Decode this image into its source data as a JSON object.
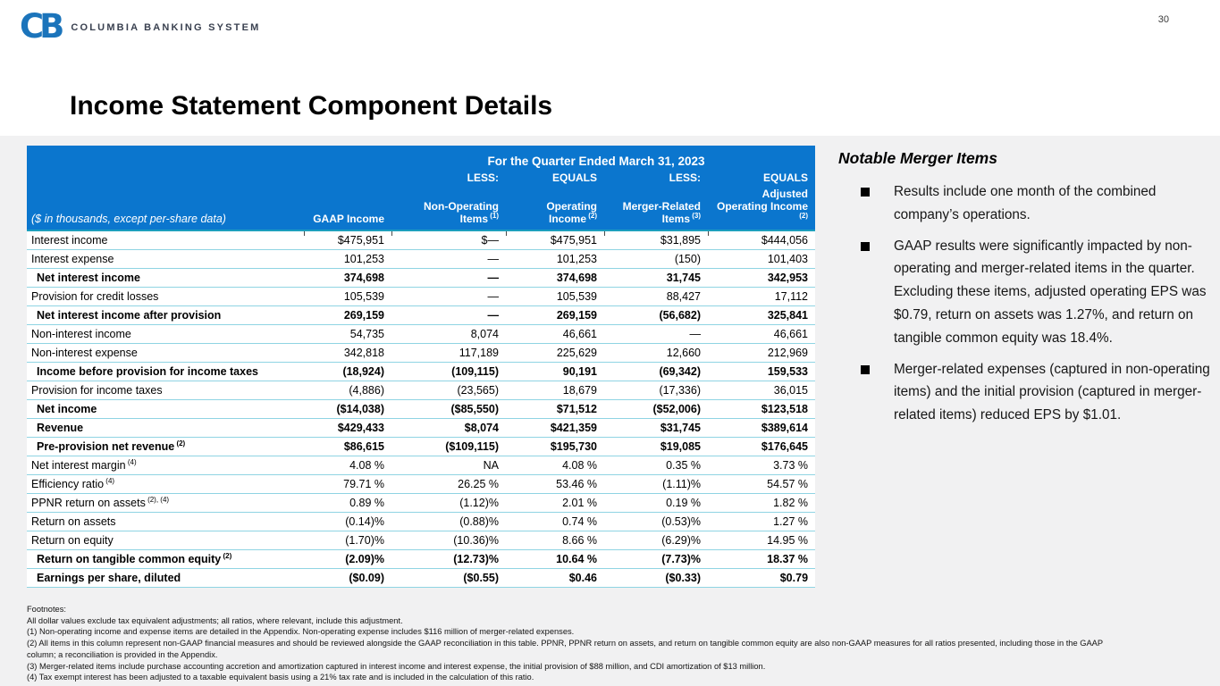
{
  "page_number": "30",
  "logo": {
    "monogram": "CB",
    "company_name": "COLUMBIA BANKING SYSTEM"
  },
  "title": "Income Statement Component Details",
  "table": {
    "period_header": "For the Quarter Ended March 31, 2023",
    "row_label_caption": "($ in thousands, except per-share data)",
    "operators": [
      "",
      "LESS:",
      "EQUALS",
      "LESS:",
      "EQUALS"
    ],
    "columns": [
      {
        "label": "GAAP Income",
        "sup": ""
      },
      {
        "label": "Non-Operating Items",
        "sup": "(1)"
      },
      {
        "label": "Operating Income",
        "sup": "(2)"
      },
      {
        "label": "Merger-Related Items",
        "sup": "(3)"
      },
      {
        "label": "Adjusted Operating Income",
        "sup": "(2)"
      }
    ],
    "rows": [
      {
        "label": "Interest income",
        "sup": "",
        "bold": false,
        "rule": "thin",
        "values": [
          "$475,951",
          "$—",
          "$475,951",
          "$31,895",
          "$444,056"
        ]
      },
      {
        "label": "Interest expense",
        "sup": "",
        "bold": false,
        "rule": "thin",
        "values": [
          "101,253",
          "—",
          "101,253",
          "(150)",
          "101,403"
        ]
      },
      {
        "label": "Net interest income",
        "sup": "",
        "bold": true,
        "rule": "thin",
        "values": [
          "374,698",
          "—",
          "374,698",
          "31,745",
          "342,953"
        ]
      },
      {
        "label": "Provision for credit losses",
        "sup": "",
        "bold": false,
        "rule": "thin",
        "values": [
          "105,539",
          "—",
          "105,539",
          "88,427",
          "17,112"
        ]
      },
      {
        "label": "Net interest income after provision",
        "sup": "",
        "bold": true,
        "rule": "thick",
        "values": [
          "269,159",
          "—",
          "269,159",
          "(56,682)",
          "325,841"
        ]
      },
      {
        "label": "Non-interest income",
        "sup": "",
        "bold": false,
        "rule": "thin",
        "values": [
          "54,735",
          "8,074",
          "46,661",
          "—",
          "46,661"
        ]
      },
      {
        "label": "Non-interest expense",
        "sup": "",
        "bold": false,
        "rule": "thin",
        "values": [
          "342,818",
          "117,189",
          "225,629",
          "12,660",
          "212,969"
        ]
      },
      {
        "label": "Income before provision for income taxes",
        "sup": "",
        "bold": true,
        "rule": "thick",
        "values": [
          "(18,924)",
          "(109,115)",
          "90,191",
          "(69,342)",
          "159,533"
        ]
      },
      {
        "label": "Provision for income taxes",
        "sup": "",
        "bold": false,
        "rule": "thin",
        "values": [
          "(4,886)",
          "(23,565)",
          "18,679",
          "(17,336)",
          "36,015"
        ]
      },
      {
        "label": "Net income",
        "sup": "",
        "bold": true,
        "rule": "thin",
        "values": [
          "($14,038)",
          "($85,550)",
          "$71,512",
          "($52,006)",
          "$123,518"
        ]
      },
      {
        "label": "Revenue",
        "sup": "",
        "bold": true,
        "rule": "thin",
        "values": [
          "$429,433",
          "$8,074",
          "$421,359",
          "$31,745",
          "$389,614"
        ]
      },
      {
        "label": "Pre-provision net revenue",
        "sup": "(2)",
        "bold": true,
        "rule": "thick",
        "values": [
          "$86,615",
          "($109,115)",
          "$195,730",
          "$19,085",
          "$176,645"
        ]
      },
      {
        "label": "Net interest margin",
        "sup": "(4)",
        "bold": false,
        "rule": "thin",
        "values": [
          "4.08 %",
          "NA",
          "4.08 %",
          "0.35 %",
          "3.73 %"
        ]
      },
      {
        "label": "Efficiency ratio",
        "sup": "(4)",
        "bold": false,
        "rule": "thin",
        "values": [
          "79.71 %",
          "26.25 %",
          "53.46 %",
          "(1.11)%",
          "54.57 %"
        ]
      },
      {
        "label": "PPNR return on assets",
        "sup": "(2), (4)",
        "bold": false,
        "rule": "thin",
        "values": [
          "0.89 %",
          "(1.12)%",
          "2.01 %",
          "0.19 %",
          "1.82 %"
        ]
      },
      {
        "label": "Return on assets",
        "sup": "",
        "bold": false,
        "rule": "thin",
        "values": [
          "(0.14)%",
          "(0.88)%",
          "0.74 %",
          "(0.53)%",
          "1.27 %"
        ]
      },
      {
        "label": "Return on equity",
        "sup": "",
        "bold": false,
        "rule": "thick",
        "values": [
          "(1.70)%",
          "(10.36)%",
          "8.66 %",
          "(6.29)%",
          "14.95 %"
        ]
      },
      {
        "label": "Return on tangible common equity",
        "sup": "(2)",
        "bold": true,
        "rule": "thick",
        "values": [
          "(2.09)%",
          "(12.73)%",
          "10.64 %",
          "(7.73)%",
          "18.37 %"
        ]
      },
      {
        "label": "Earnings per share, diluted",
        "sup": "",
        "bold": true,
        "rule": "heavy",
        "values": [
          "($0.09)",
          "($0.55)",
          "$0.46",
          "($0.33)",
          "$0.79"
        ]
      }
    ]
  },
  "footnotes": {
    "heading": "Footnotes:",
    "items": [
      "All dollar values exclude tax equivalent adjustments; all ratios, where relevant, include this adjustment.",
      "(1) Non-operating income and expense items are detailed in the Appendix. Non-operating expense includes $116 million of merger-related expenses.",
      "(2) All items in this column represent non-GAAP financial measures and should be reviewed alongside the GAAP reconciliation in this table. PPNR, PPNR return on assets, and return on tangible common equity are also non-GAAP measures for all ratios presented, including those in the GAAP column; a reconciliation is provided in the Appendix.",
      "(3) Merger-related items include purchase accounting accretion and amortization captured in interest income and interest expense, the initial provision of $88 million, and CDI amortization of $13 million.",
      "(4) Tax exempt interest has been adjusted to a taxable equivalent basis using a 21% tax rate and is included in the calculation of this ratio."
    ]
  },
  "sidebar": {
    "heading": "Notable Merger Items",
    "bullets": [
      "Results include one month of the combined company’s operations.",
      "GAAP results were significantly impacted by non-operating and merger-related items in the quarter. Excluding these items, adjusted operating EPS was $0.79, return on assets was 1.27%, and return on tangible common equity was 18.4%.",
      "Merger-related expenses (captured in non-operating items) and the initial provision (captured in merger-related items) reduced EPS by $1.01."
    ]
  },
  "colors": {
    "header_blue": "#0b76ce",
    "rule_teal": "#23adcb",
    "rule_teal_light": "#8fd4e3",
    "logo_blue": "#1b74bb",
    "content_background": "#f1f1f2"
  }
}
